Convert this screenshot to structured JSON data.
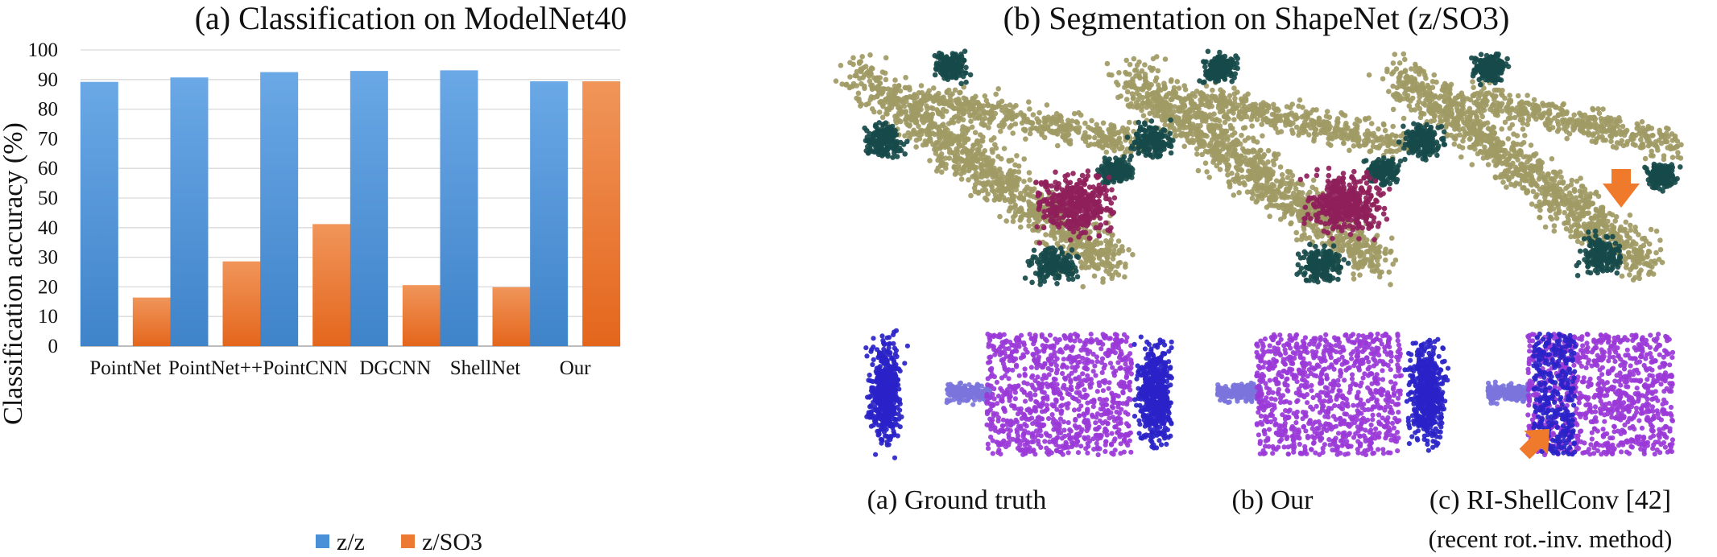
{
  "left_panel": {
    "title": "(a) Classification on ModelNet40"
  },
  "right_panel": {
    "title": "(b) Segmentation on ShapeNet (z/SO3)",
    "captions": [
      {
        "line1": "(a) Ground truth",
        "line2": ""
      },
      {
        "line1": "(b) Our",
        "line2": ""
      },
      {
        "line1": "(c) RI-ShellConv [42]",
        "line2": "(recent rot.-inv. method)"
      }
    ],
    "colors": {
      "body": "#a09a64",
      "part_dark": "#174a4a",
      "part_magenta": "#8f1f5a",
      "mug_blue": "#2a23c8",
      "mug_handle": "#7b74dc",
      "mug_purple": "#9a3ad8",
      "arrow": "#f07a2c"
    }
  },
  "chart_data": {
    "type": "bar",
    "title": "(a) Classification on ModelNet40",
    "xlabel": "",
    "ylabel": "Classification accuracy (%)",
    "categories": [
      "PointNet",
      "PointNet++",
      "PointCNN",
      "DGCNN",
      "ShellNet",
      "Our"
    ],
    "series": [
      {
        "name": "z/z",
        "values": [
          89.2,
          90.7,
          92.5,
          92.9,
          93.1,
          89.4
        ],
        "color": "#4a90d9"
      },
      {
        "name": "z/SO3",
        "values": [
          16.4,
          28.6,
          41.2,
          20.6,
          19.9,
          89.4
        ],
        "color": "#ec7a32"
      }
    ],
    "ylim": [
      0,
      100
    ],
    "yticks": [
      0,
      10,
      20,
      30,
      40,
      50,
      60,
      70,
      80,
      90,
      100
    ],
    "grid": true,
    "legend_position": "bottom"
  }
}
